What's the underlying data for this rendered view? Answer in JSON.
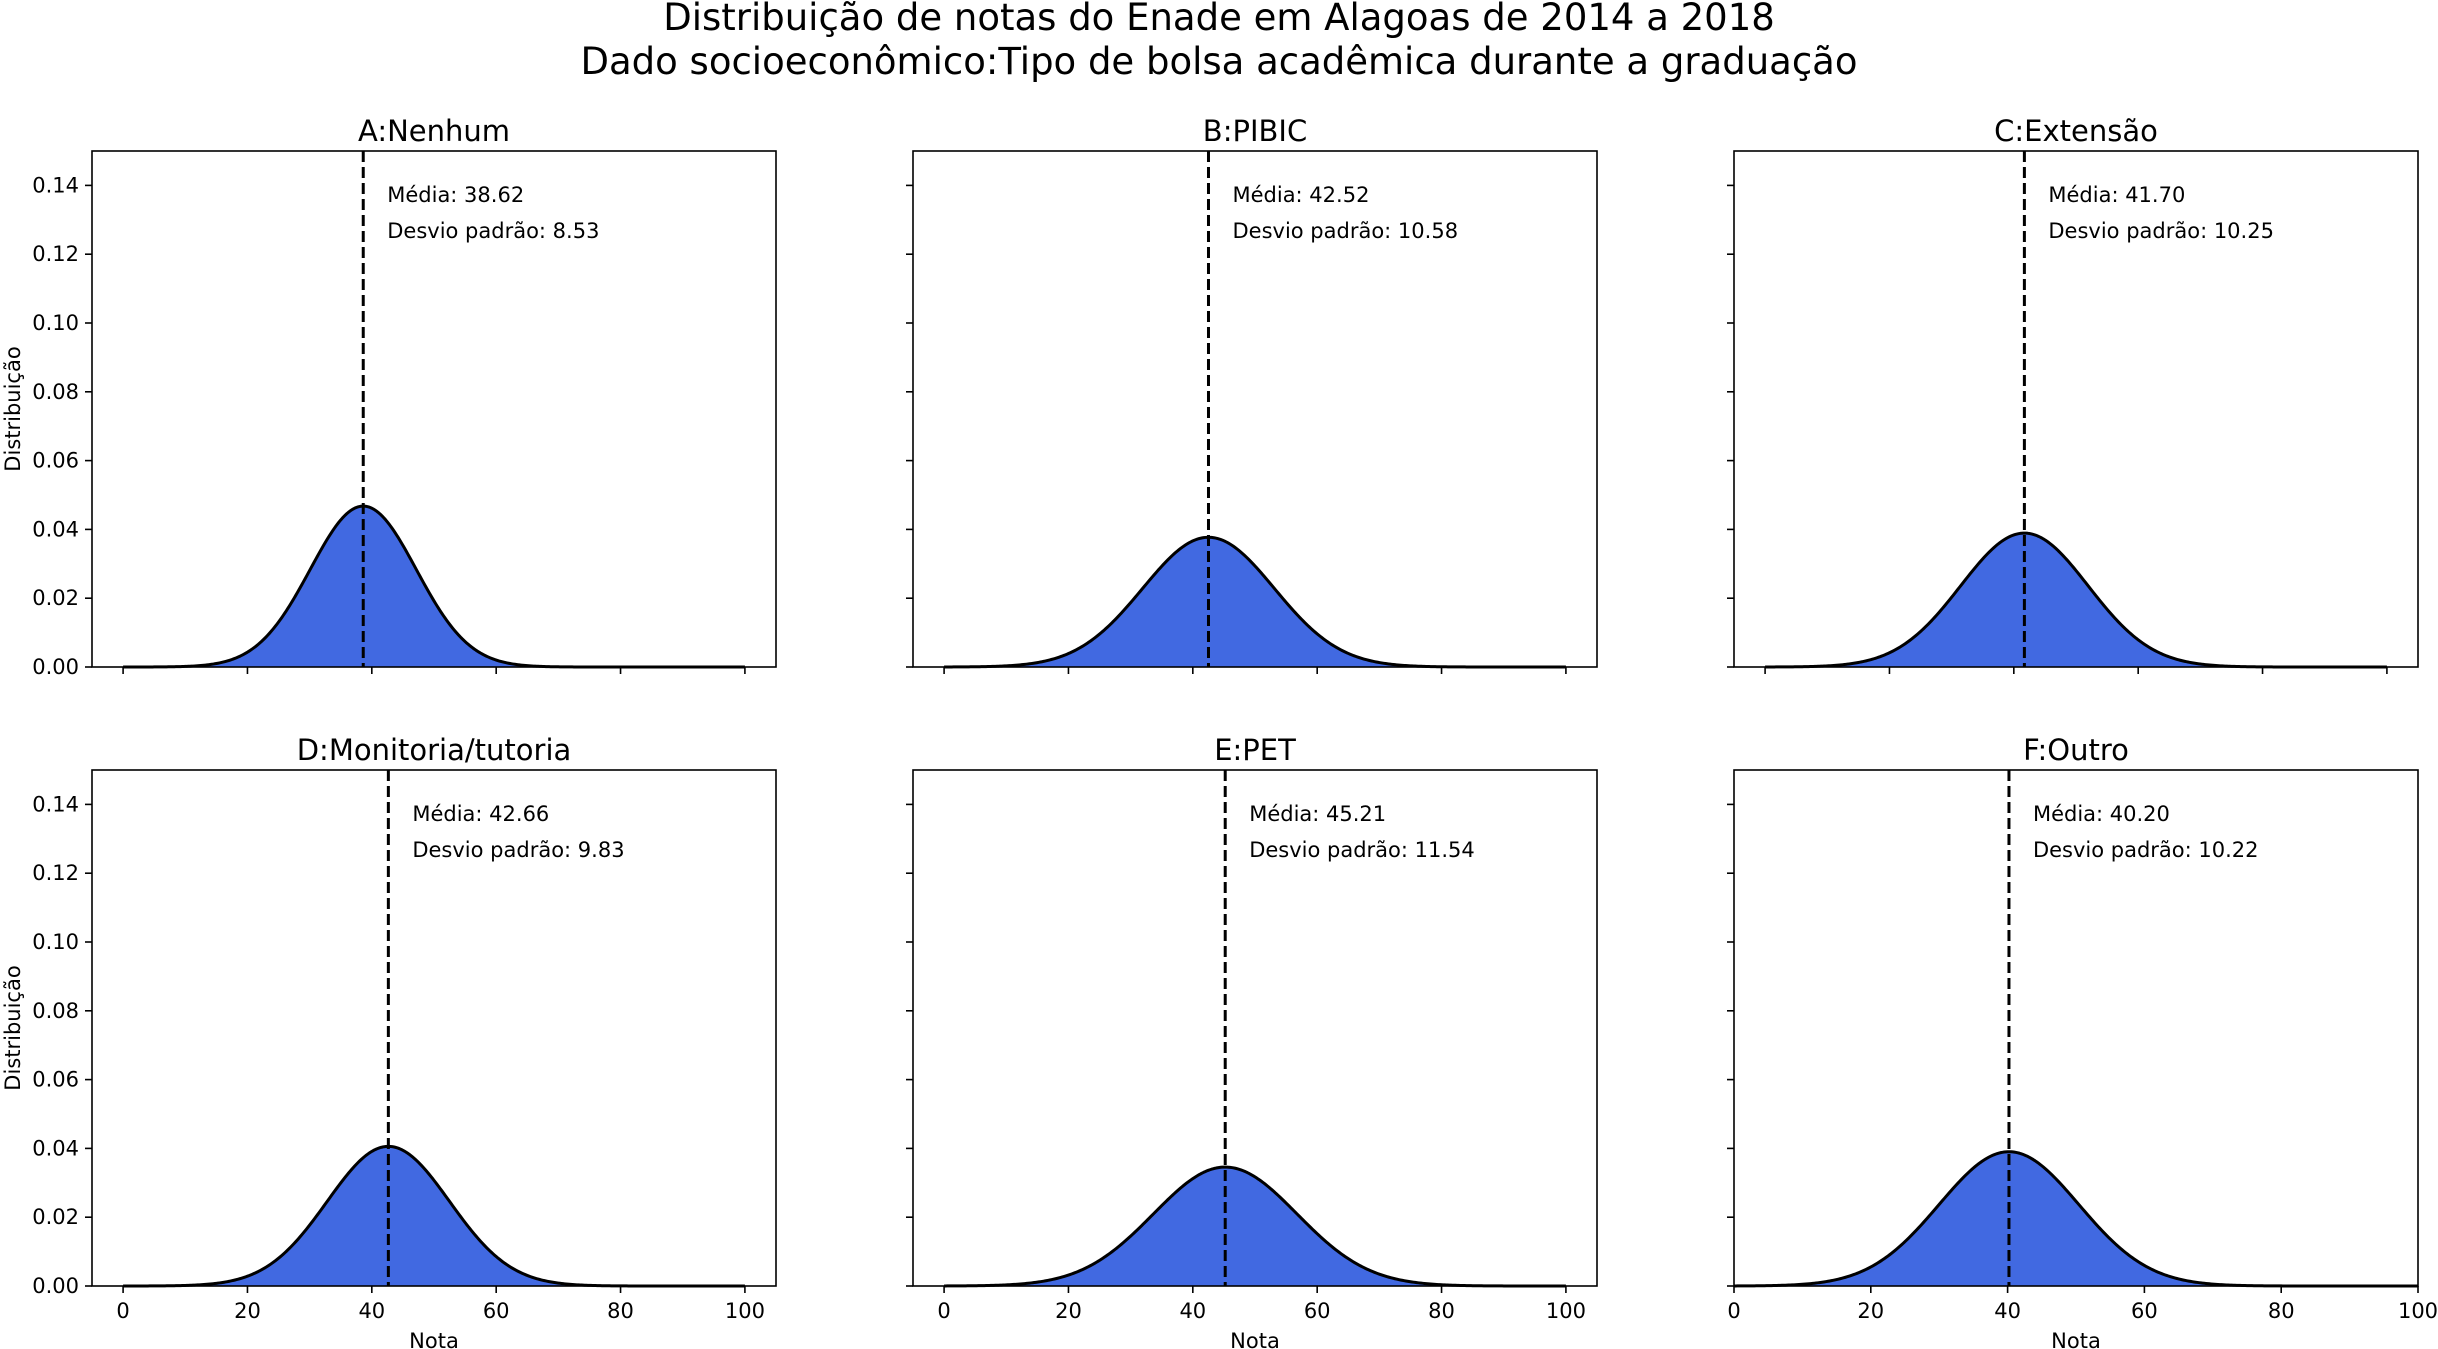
{
  "figure": {
    "title_line1": "Distribuição de notas do Enade em Alagoas de 2014 a 2018",
    "title_line2": "Dado socioeconômico:Tipo de bolsa acadêmica durante a graduação"
  },
  "colors": {
    "fill": "#4169E1",
    "curve": "#000000",
    "mean_line": "#000000"
  },
  "chart_data": [
    {
      "type": "area",
      "title": "A:Nenhum",
      "mean": 38.62,
      "std": 8.53,
      "mean_label": "Média: 38.62",
      "std_label": "Desvio padrão: 8.53",
      "xlabel": "",
      "ylabel": "Distribuição",
      "xlim": [
        -5,
        105
      ],
      "ylim": [
        0,
        0.15
      ],
      "xticks": [
        0,
        20,
        40,
        60,
        80,
        100
      ],
      "yticks": [
        0.0,
        0.02,
        0.04,
        0.06,
        0.08,
        0.1,
        0.12,
        0.14
      ],
      "show_xtick_labels": false,
      "show_ytick_labels": true,
      "grid": false
    },
    {
      "type": "area",
      "title": "B:PIBIC",
      "mean": 42.52,
      "std": 10.58,
      "mean_label": "Média: 42.52",
      "std_label": "Desvio padrão: 10.58",
      "xlabel": "",
      "ylabel": "",
      "xlim": [
        -5,
        105
      ],
      "ylim": [
        0,
        0.15
      ],
      "xticks": [
        0,
        20,
        40,
        60,
        80,
        100
      ],
      "yticks": [
        0.0,
        0.02,
        0.04,
        0.06,
        0.08,
        0.1,
        0.12,
        0.14
      ],
      "show_xtick_labels": false,
      "show_ytick_labels": false,
      "grid": false
    },
    {
      "type": "area",
      "title": "C:Extensão",
      "mean": 41.7,
      "std": 10.25,
      "mean_label": "Média: 41.70",
      "std_label": "Desvio padrão: 10.25",
      "xlabel": "",
      "ylabel": "",
      "xlim": [
        -5,
        105
      ],
      "ylim": [
        0,
        0.15
      ],
      "xticks": [
        0,
        20,
        40,
        60,
        80,
        100
      ],
      "yticks": [
        0.0,
        0.02,
        0.04,
        0.06,
        0.08,
        0.1,
        0.12,
        0.14
      ],
      "show_xtick_labels": false,
      "show_ytick_labels": false,
      "grid": false
    },
    {
      "type": "area",
      "title": "D:Monitoria/tutoria",
      "mean": 42.66,
      "std": 9.83,
      "mean_label": "Média: 42.66",
      "std_label": "Desvio padrão: 9.83",
      "xlabel": "Nota",
      "ylabel": "Distribuição",
      "xlim": [
        -5,
        105
      ],
      "ylim": [
        0,
        0.15
      ],
      "xticks": [
        0,
        20,
        40,
        60,
        80,
        100
      ],
      "yticks": [
        0.0,
        0.02,
        0.04,
        0.06,
        0.08,
        0.1,
        0.12,
        0.14
      ],
      "show_xtick_labels": true,
      "show_ytick_labels": true,
      "grid": false
    },
    {
      "type": "area",
      "title": "E:PET",
      "mean": 45.21,
      "std": 11.54,
      "mean_label": "Média: 45.21",
      "std_label": "Desvio padrão: 11.54",
      "xlabel": "Nota",
      "ylabel": "",
      "xlim": [
        -5,
        105
      ],
      "ylim": [
        0,
        0.15
      ],
      "xticks": [
        0,
        20,
        40,
        60,
        80,
        100
      ],
      "yticks": [
        0.0,
        0.02,
        0.04,
        0.06,
        0.08,
        0.1,
        0.12,
        0.14
      ],
      "show_xtick_labels": true,
      "show_ytick_labels": false,
      "grid": false
    },
    {
      "type": "area",
      "title": "F:Outro",
      "mean": 40.2,
      "std": 10.22,
      "mean_label": "Média: 40.20",
      "std_label": "Desvio padrão: 10.22",
      "xlabel": "Nota",
      "ylabel": "",
      "xlim": [
        0,
        100
      ],
      "ylim": [
        0,
        0.15
      ],
      "xticks": [
        0,
        20,
        40,
        60,
        80,
        100
      ],
      "yticks": [
        0.0,
        0.02,
        0.04,
        0.06,
        0.08,
        0.1,
        0.12,
        0.14
      ],
      "show_xtick_labels": true,
      "show_ytick_labels": false,
      "grid": false
    }
  ]
}
